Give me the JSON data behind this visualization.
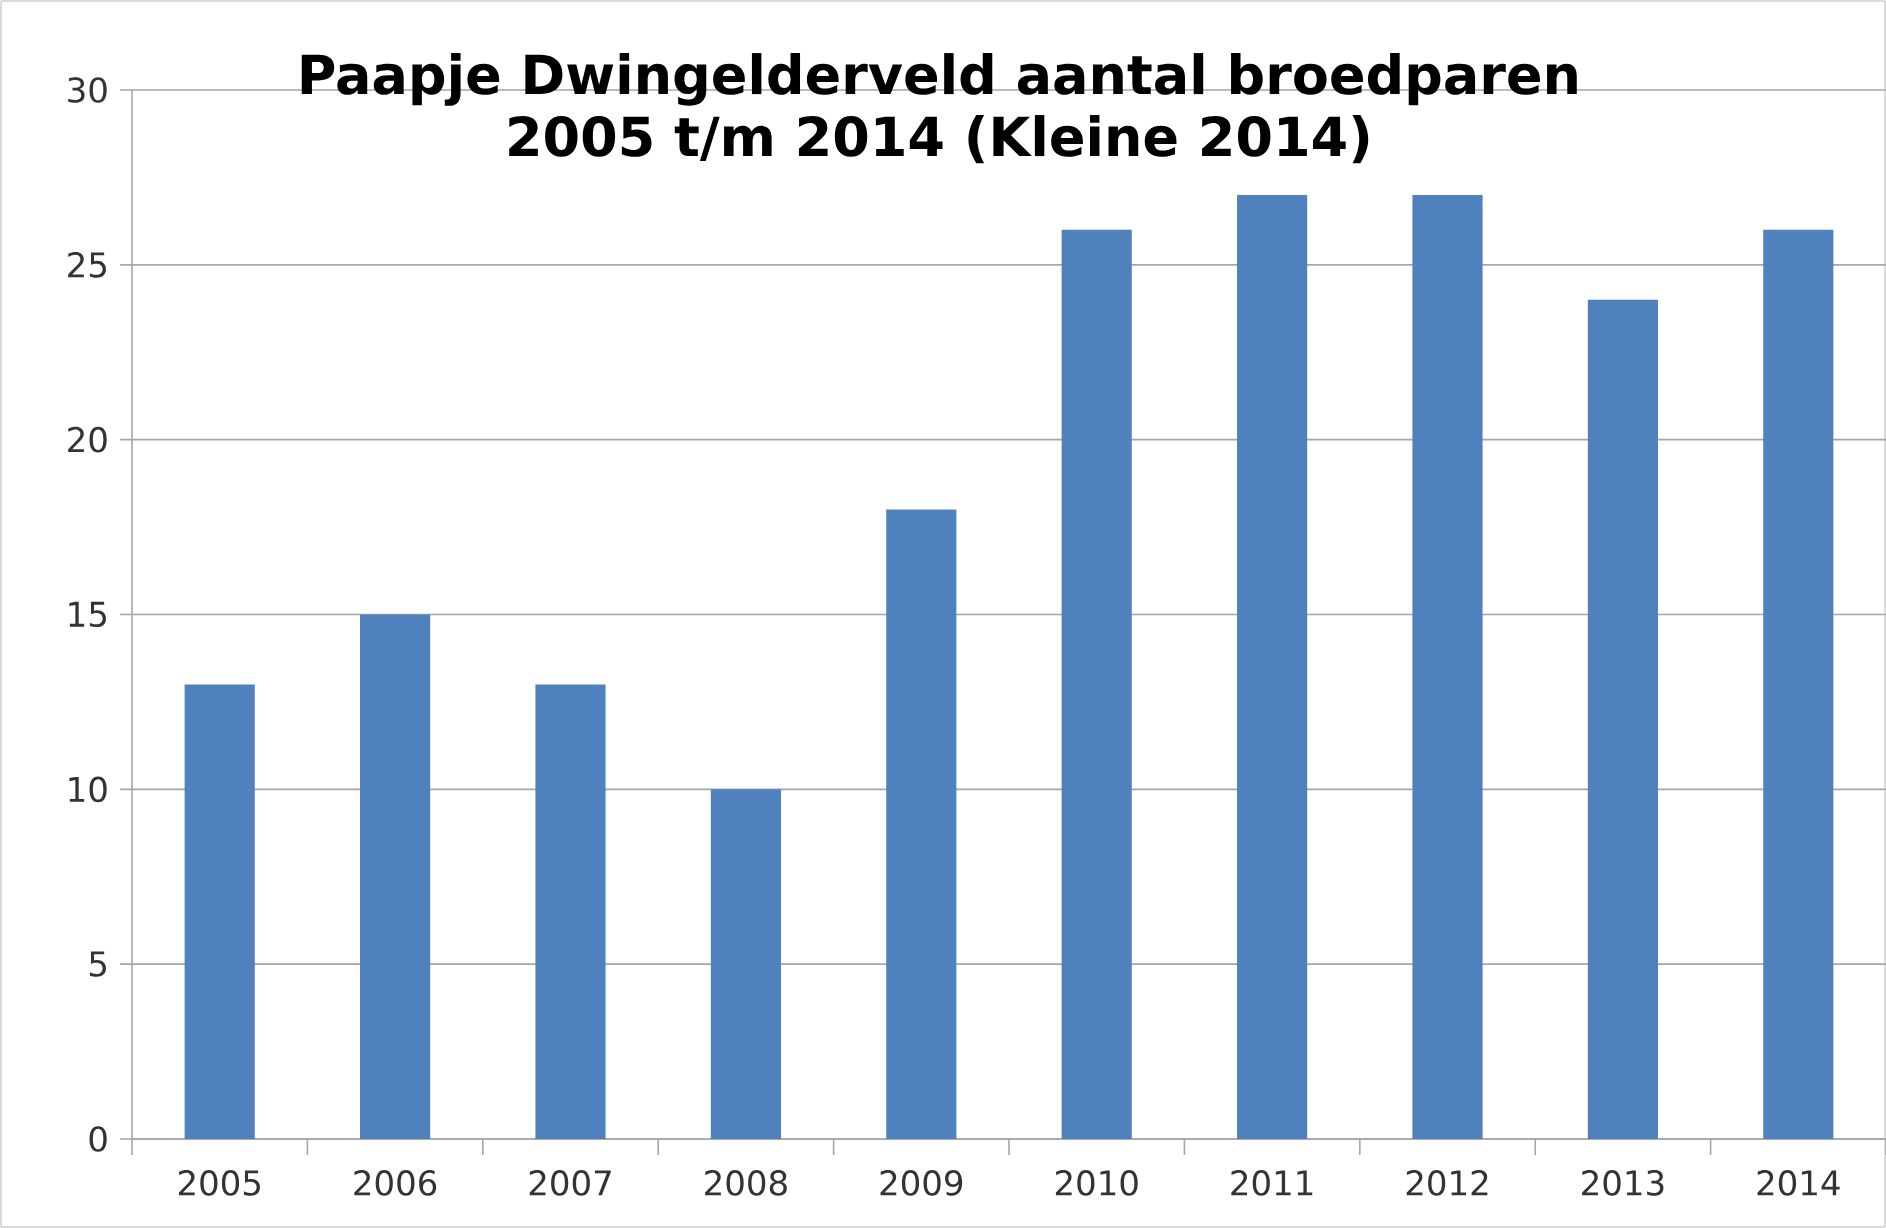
{
  "chart_data": {
    "type": "bar",
    "title": "Paapje Dwingelderveld  aantal broedparen\n2005 t/m 2014 (Kleine 2014)",
    "categories": [
      "2005",
      "2006",
      "2007",
      "2008",
      "2009",
      "2010",
      "2011",
      "2012",
      "2013",
      "2014"
    ],
    "values": [
      13,
      15,
      13,
      10,
      18,
      26,
      27,
      27,
      24,
      26
    ],
    "color": "#4f81bd",
    "ylim": [
      0,
      30
    ],
    "yticks": [
      0,
      5,
      10,
      15,
      20,
      25,
      30
    ],
    "grid": "y"
  }
}
